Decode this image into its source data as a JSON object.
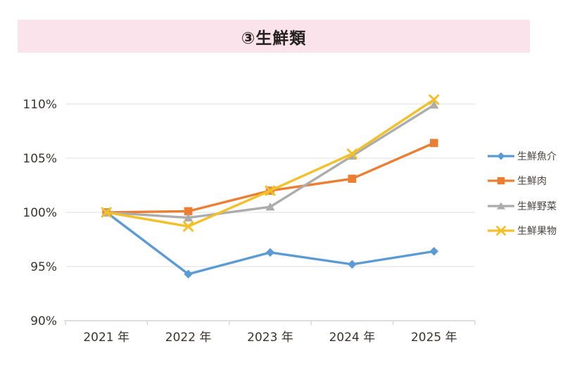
{
  "header": {
    "title": "③生鮮類",
    "banner_color": "#FBE3EC",
    "text_color": "#262120"
  },
  "chart_data": {
    "type": "line",
    "categories": [
      "2021 年",
      "2022 年",
      "2023 年",
      "2024 年",
      "2025 年"
    ],
    "series": [
      {
        "name": "生鮮魚介",
        "color": "#5B9BD5",
        "marker": "diamond",
        "values": [
          100.0,
          94.3,
          96.3,
          95.2,
          96.4
        ]
      },
      {
        "name": "生鮮肉",
        "color": "#ED7D31",
        "marker": "square",
        "values": [
          100.0,
          100.1,
          102.0,
          103.1,
          106.4
        ]
      },
      {
        "name": "生鮮野菜",
        "color": "#ACACAC",
        "marker": "triangle",
        "values": [
          100.0,
          99.5,
          100.5,
          105.2,
          109.9
        ]
      },
      {
        "name": "生鮮果物",
        "color": "#F2C029",
        "marker": "x",
        "values": [
          100.0,
          98.7,
          102.0,
          105.4,
          110.4
        ]
      }
    ],
    "y_axis": {
      "min": 90,
      "max": 112,
      "tick_step": 5,
      "tick_values": [
        90,
        95,
        100,
        105,
        110
      ],
      "tick_labels": [
        "90%",
        "95%",
        "100%",
        "105%",
        "110%"
      ]
    },
    "x_axis": {
      "label_suffix": "年"
    },
    "legend_position": "right",
    "grid": true,
    "gridline_color": "#EBEBEB",
    "axis_line_color": "#D6D6D6",
    "axis_text_color": "#3A3330",
    "legend_text_color": "#4A4440"
  }
}
